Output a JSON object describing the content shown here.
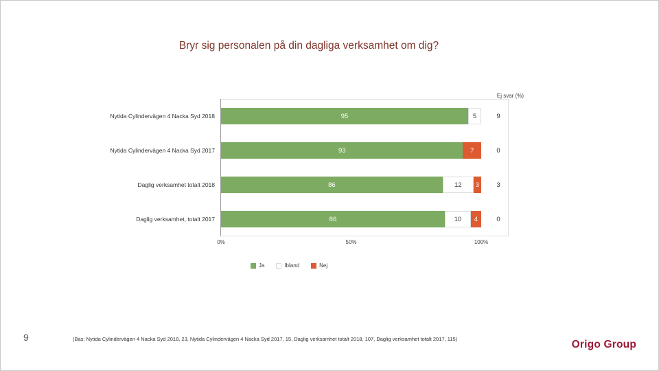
{
  "slide": {
    "title": "Bryr sig personalen på din dagliga verksamhet om dig?",
    "page_number": "9",
    "footer": "(Bas: Nytida Cylindervägen 4 Nacka Syd 2018, 23, Nytida Cylindervägen 4 Nacka Syd 2017, 15, Daglig verksamhet totalt 2018, 107, Daglig verksamhet totalt 2017, 115)",
    "logo": "Origo Group"
  },
  "colors": {
    "title": "#7E352B",
    "logo": "#9D1935",
    "ja": "#7CAB61",
    "ibland": "#FFFFFF",
    "nej": "#DE5B31"
  },
  "chart_data": {
    "type": "bar",
    "orientation": "horizontal-stacked",
    "title": "Bryr sig personalen på din dagliga verksamhet om dig?",
    "ej_svar_label": "Ej svar (%)",
    "categories": [
      "Nytida Cylindervägen 4 Nacka Syd 2018",
      "Nytida Cylindervägen 4 Nacka Syd 2017",
      "Daglig verksamhet totalt 2018",
      "Daglig verksamhet, totalt 2017"
    ],
    "series": [
      {
        "name": "Ja",
        "color": "#7CAB61",
        "text_color": "#FFFFFF",
        "border": null,
        "values": [
          95,
          93,
          86,
          86
        ]
      },
      {
        "name": "Ibland",
        "color": "#FFFFFF",
        "text_color": "#404040",
        "border": "#DBDBDB",
        "values": [
          5,
          0,
          12,
          10
        ]
      },
      {
        "name": "Nej",
        "color": "#DE5B31",
        "text_color": "#FFFFFF",
        "border": null,
        "values": [
          0,
          7,
          3,
          4
        ]
      }
    ],
    "ej_svar": [
      9,
      0,
      3,
      0
    ],
    "x_ticks": [
      "0%",
      "50%",
      "100%"
    ],
    "xlim": [
      0,
      100
    ],
    "grid": false,
    "legend_position": "bottom",
    "legend": [
      "Ja",
      "Ibland",
      "Nej"
    ]
  }
}
